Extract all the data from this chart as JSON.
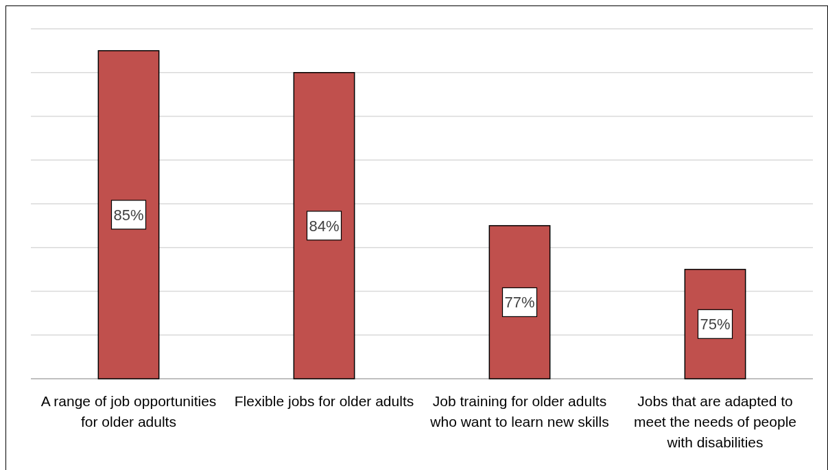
{
  "chart_data": {
    "type": "bar",
    "categories": [
      "A range of job opportunities for older adults",
      "Flexible jobs for older adults",
      "Job training for older adults who want to learn new skills",
      "Jobs that are adapted to meet the needs of people with disabilities"
    ],
    "values": [
      85,
      84,
      77,
      75
    ],
    "color": "#c0504d",
    "ylim": [
      70,
      86
    ],
    "yticks": [
      {
        "value": 70,
        "label": null
      },
      {
        "value": 72,
        "label": null
      },
      {
        "value": 74,
        "label": null
      },
      {
        "value": 76,
        "label": null
      },
      {
        "value": 78,
        "label": null
      },
      {
        "value": 80,
        "label": null
      },
      {
        "value": 82,
        "label": null
      },
      {
        "value": 84,
        "label": null
      },
      {
        "value": 86,
        "label": null
      }
    ],
    "value_labels": [
      "85%",
      "84%",
      "77%",
      "75%"
    ],
    "grid": "y",
    "tick_labels": "x"
  }
}
